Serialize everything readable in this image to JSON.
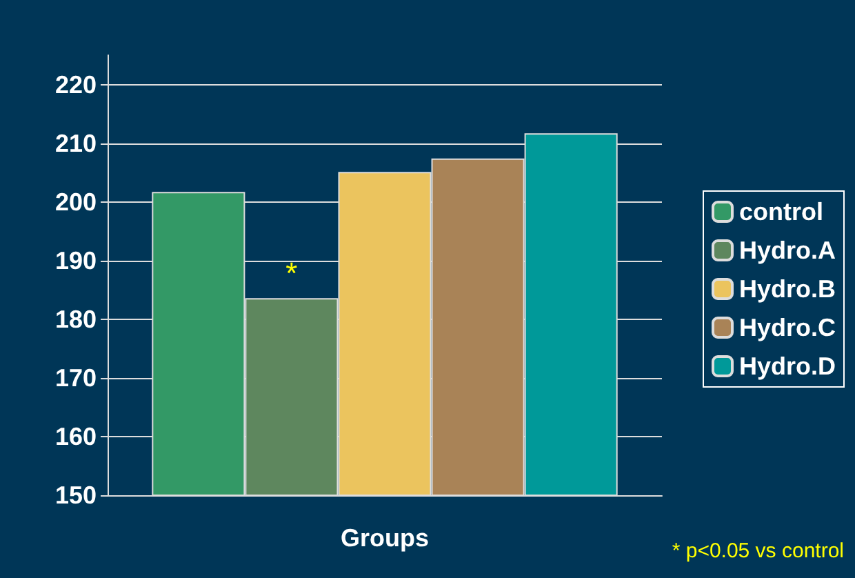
{
  "chart_data": {
    "type": "bar",
    "xlabel": "Groups",
    "categories": [
      null
    ],
    "series": [
      {
        "name": "control",
        "color": "#339966",
        "values": [
          201.7
        ]
      },
      {
        "name": "Hydro.A",
        "color": "#5e875e",
        "values": [
          183.6
        ]
      },
      {
        "name": "Hydro.B",
        "color": "#ebc45e",
        "values": [
          205.1
        ]
      },
      {
        "name": "Hydro.C",
        "color": "#a98357",
        "values": [
          207.4
        ]
      },
      {
        "name": "Hydro.D",
        "color": "#009999",
        "values": [
          211.7
        ]
      }
    ],
    "ylim": [
      150,
      225
    ],
    "yticks": [
      150,
      160,
      170,
      180,
      190,
      200,
      210,
      220
    ],
    "grid": "y",
    "legend": "right",
    "annotations": [
      {
        "text": "*",
        "y": 183.6
      },
      "* p<0.05 vs control"
    ]
  }
}
